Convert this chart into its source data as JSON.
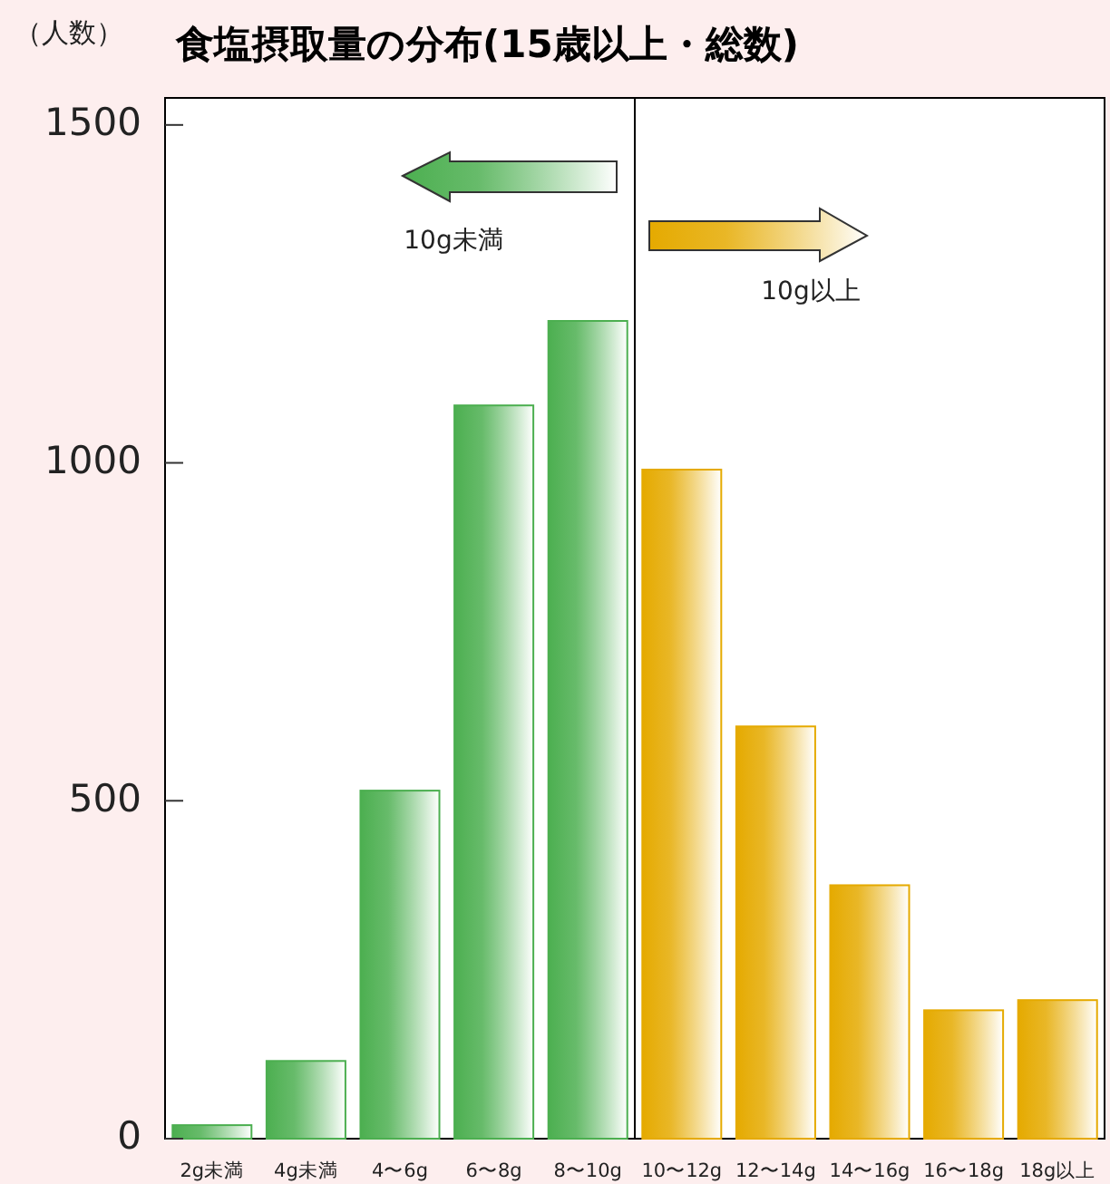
{
  "chart_data": {
    "type": "bar",
    "title": "食塩摂取量の分布(15歳以上・総数)",
    "ylabel": "（人数）",
    "categories": [
      "2g未満",
      "4g未満",
      "4〜6g",
      "6〜8g",
      "8〜10g",
      "10〜12g",
      "12〜14g",
      "14〜16g",
      "16〜18g",
      "18g以上"
    ],
    "values": [
      20,
      115,
      515,
      1085,
      1210,
      990,
      610,
      375,
      190,
      205
    ],
    "colors": [
      "#4caf50",
      "#4caf50",
      "#4caf50",
      "#4caf50",
      "#4caf50",
      "#e5aa00",
      "#e5aa00",
      "#e5aa00",
      "#e5aa00",
      "#e5aa00"
    ],
    "ylim": [
      0,
      1540
    ],
    "yticks": [
      0,
      500,
      1000,
      1500
    ],
    "grid": false,
    "annotations": [
      "10g未満",
      "10g以上"
    ]
  }
}
